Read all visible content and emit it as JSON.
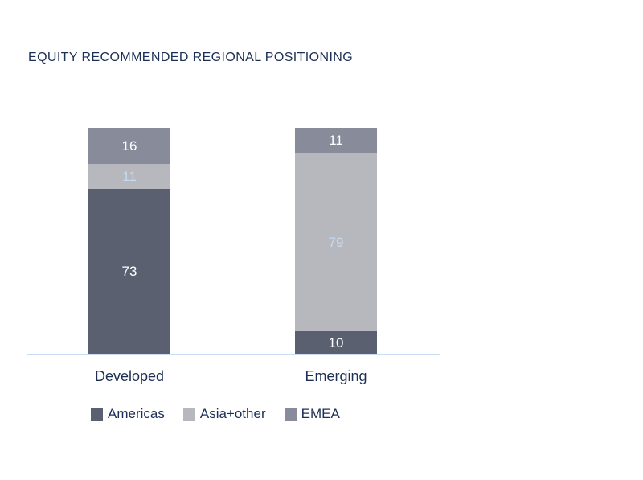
{
  "chart_data": {
    "type": "bar",
    "stacked": true,
    "title": "EQUITY RECOMMENDED REGIONAL POSITIONING",
    "categories": [
      "Developed",
      "Emerging"
    ],
    "series": [
      {
        "name": "Americas",
        "values": [
          73,
          10
        ],
        "color": "#5b6070",
        "label_color": "#ffffff"
      },
      {
        "name": "Asia+other",
        "values": [
          11,
          79
        ],
        "color": "#b6b8bd",
        "label_color": "#c7d9ef"
      },
      {
        "name": "EMEA",
        "values": [
          16,
          11
        ],
        "color": "#888b99",
        "label_color": "#ffffff"
      }
    ],
    "ylim": [
      0,
      100
    ],
    "grid": false,
    "legend_position": "bottom",
    "axis_line_color": "#cbddf3",
    "text_color": "#1c3055"
  }
}
